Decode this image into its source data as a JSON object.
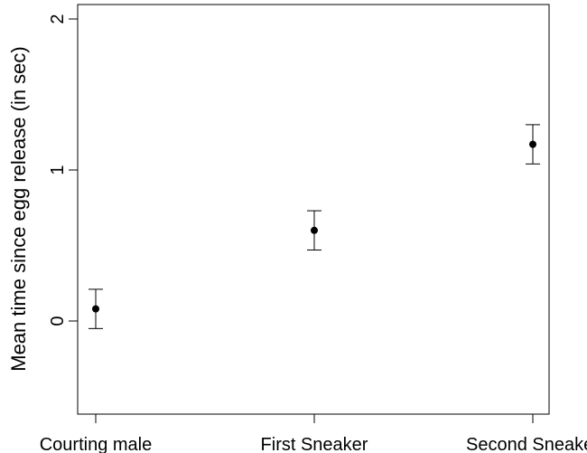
{
  "chart_data": {
    "type": "scatter",
    "title": "",
    "xlabel": "",
    "ylabel": "Mean time since egg release (in sec)",
    "categories": [
      "Courting male",
      "First Sneaker",
      "Second Sneaker"
    ],
    "values": [
      0.08,
      0.6,
      1.17
    ],
    "error_low": [
      -0.05,
      0.47,
      1.04
    ],
    "error_high": [
      0.21,
      0.73,
      1.3
    ],
    "ylim": [
      -0.6,
      2.05
    ],
    "y_ticks": [
      "0",
      "1",
      "2"
    ],
    "grid": false,
    "legend": "none",
    "colors": {
      "points": "#000000",
      "axes": "#000000"
    }
  }
}
